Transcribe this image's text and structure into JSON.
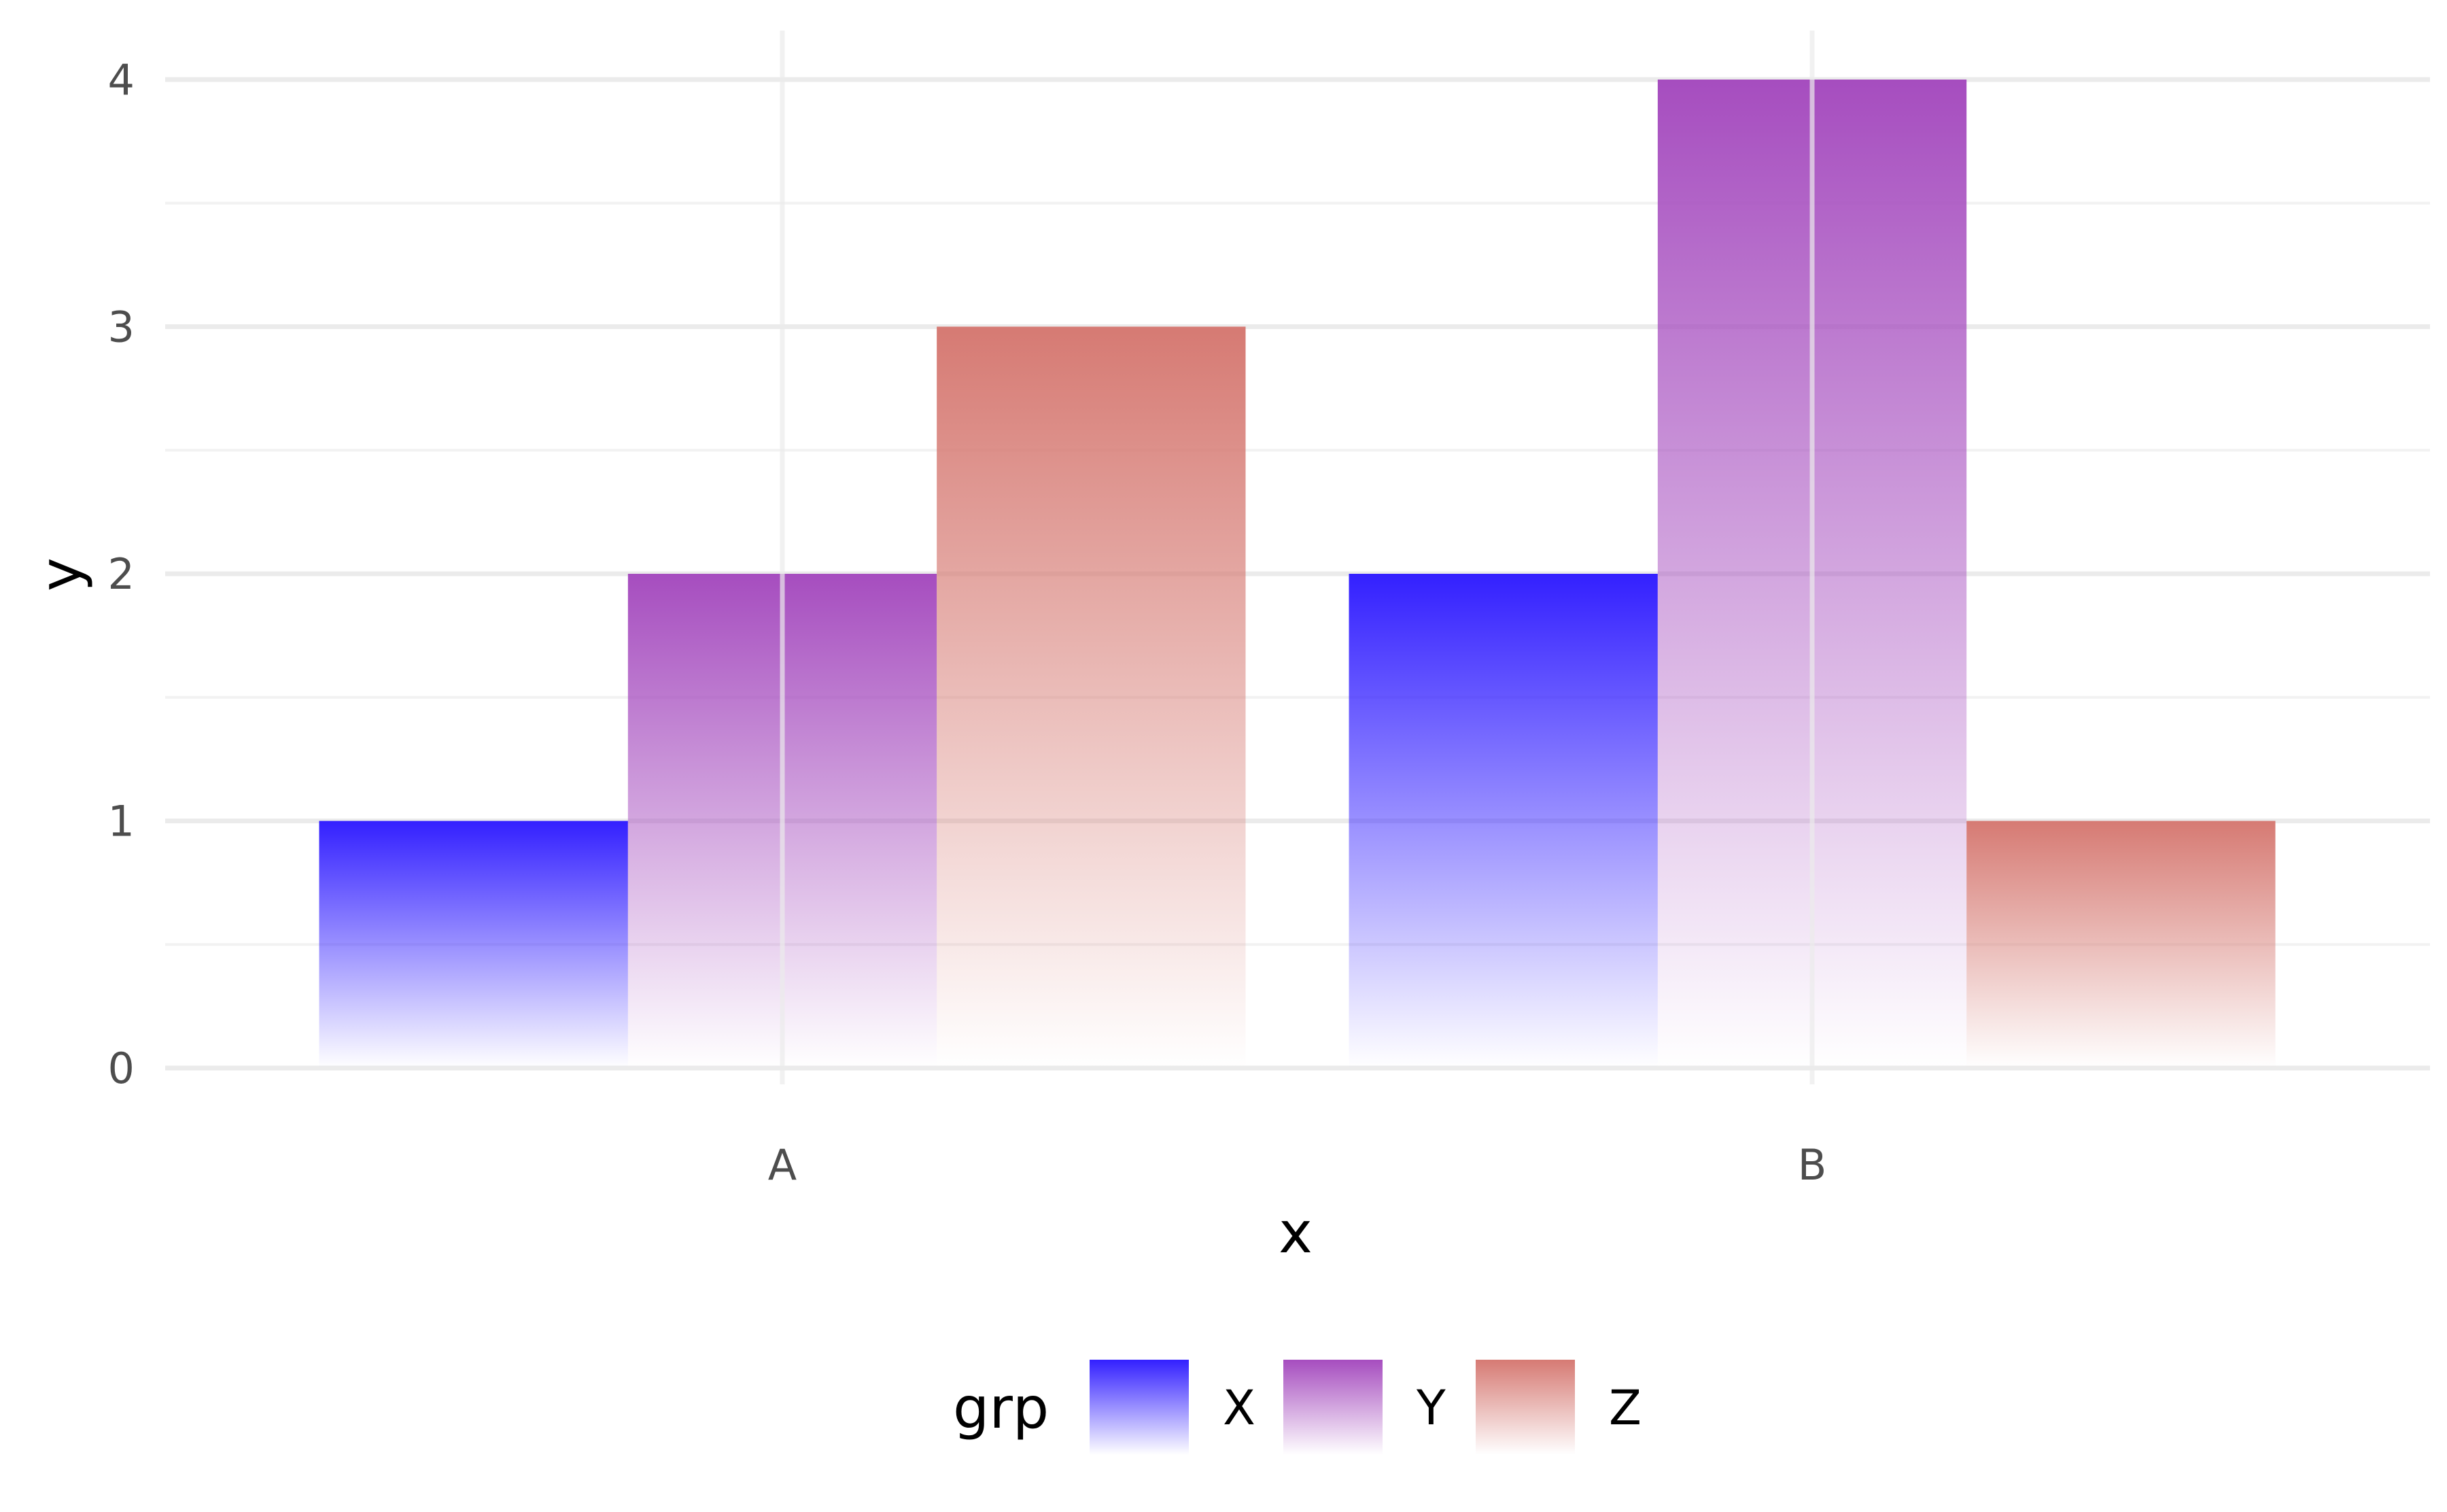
{
  "chart_data": {
    "type": "bar",
    "categories": [
      "A",
      "B"
    ],
    "series": [
      {
        "name": "X",
        "values": [
          1,
          2
        ],
        "color": "#3320FF"
      },
      {
        "name": "Y",
        "values": [
          2,
          4
        ],
        "color": "#A64DBF"
      },
      {
        "name": "Z",
        "values": [
          3,
          1
        ],
        "color": "#D67A73"
      }
    ],
    "fill_style": "vertical gradient from series color at bar top to white at baseline",
    "xlabel": "x",
    "ylabel": "y",
    "ylim": [
      0,
      4.2
    ],
    "yticks": [
      0,
      1,
      2,
      3,
      4
    ],
    "grid": true,
    "legend": {
      "title": "grp",
      "position": "bottom",
      "entries": [
        "X",
        "Y",
        "Z"
      ]
    },
    "theme": {
      "grid_major": "#EBEBEB",
      "grid_minor": "#F2F2F2",
      "tick_text": "#4D4D4D",
      "background": "#FFFFFF"
    }
  }
}
